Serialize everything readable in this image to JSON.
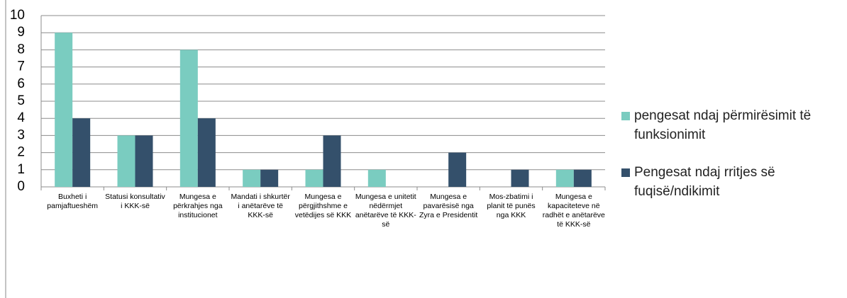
{
  "chart_data": {
    "type": "bar",
    "categories": [
      "Buxheti i pamjaftueshëm",
      "Statusi konsultativ i KKK-së",
      "Mungesa e përkrahjes nga institucionet",
      "Mandati i shkurtër i anëtarëve të KKK-së",
      "Mungesa e përgjithshme e vetëdijes së KKK",
      "Mungesa e unitetit nëdërmjet anëtarëve të KKK-së",
      "Mungesa e pavarësisë nga Zyra e Presidentit",
      "Mos-zbatimi i planit të punës nga KKK",
      "Mungesa e kapaciteteve në radhët e anëtarëve të KKK-së"
    ],
    "series": [
      {
        "name": "pengesat ndaj përmirësimit të funksionimit",
        "color": "#7accc0",
        "values": [
          9,
          3,
          8,
          1,
          1,
          1,
          0,
          0,
          1
        ]
      },
      {
        "name": "Pengesat ndaj rritjes së fuqisë/ndikimit",
        "color": "#34506b",
        "values": [
          4,
          3,
          4,
          1,
          3,
          0,
          2,
          1,
          1
        ]
      }
    ],
    "ylim": [
      0,
      10
    ],
    "yticks": [
      0,
      1,
      2,
      3,
      4,
      5,
      6,
      7,
      8,
      9,
      10
    ],
    "grid": true,
    "legend": "right"
  }
}
